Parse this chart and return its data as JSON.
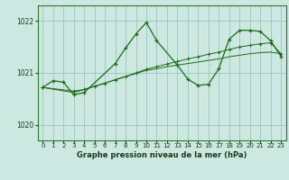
{
  "bg_color": "#cde8e0",
  "grid_color": "#8fbfb8",
  "line_color": "#1a6b1a",
  "xlabel": "Graphe pression niveau de la mer (hPa)",
  "xlim": [
    -0.5,
    23.5
  ],
  "ylim": [
    1019.7,
    1022.3
  ],
  "yticks": [
    1020,
    1021,
    1022
  ],
  "xticks": [
    0,
    1,
    2,
    3,
    4,
    5,
    6,
    7,
    8,
    9,
    10,
    11,
    12,
    13,
    14,
    15,
    16,
    17,
    18,
    19,
    20,
    21,
    22,
    23
  ],
  "line1_x": [
    0,
    1,
    2,
    3,
    4,
    7,
    8,
    9,
    10,
    11,
    13,
    14,
    15,
    16,
    17,
    18,
    19,
    20,
    21,
    22,
    23
  ],
  "line1_y": [
    1020.72,
    1020.85,
    1020.82,
    1020.58,
    1020.62,
    1021.18,
    1021.48,
    1021.75,
    1021.97,
    1021.62,
    1021.15,
    1020.88,
    1020.76,
    1020.78,
    1021.08,
    1021.65,
    1021.82,
    1021.82,
    1021.8,
    1021.62,
    1021.32
  ],
  "line2_x": [
    0,
    3,
    4,
    5,
    6,
    7,
    8,
    9,
    10,
    11,
    12,
    13,
    14,
    15,
    16,
    17,
    18,
    19,
    20,
    21,
    22,
    23
  ],
  "line2_y": [
    1020.72,
    1020.65,
    1020.68,
    1020.74,
    1020.8,
    1020.87,
    1020.93,
    1021.0,
    1021.07,
    1021.12,
    1021.17,
    1021.22,
    1021.27,
    1021.31,
    1021.36,
    1021.4,
    1021.45,
    1021.5,
    1021.53,
    1021.56,
    1021.58,
    1021.37
  ],
  "line3_x": [
    0,
    3,
    10,
    11,
    12,
    13,
    14,
    15,
    16,
    17,
    18,
    19,
    20,
    21,
    22,
    23
  ],
  "line3_y": [
    1020.72,
    1020.62,
    1021.05,
    1021.08,
    1021.12,
    1021.15,
    1021.18,
    1021.21,
    1021.24,
    1021.27,
    1021.31,
    1021.34,
    1021.37,
    1021.39,
    1021.4,
    1021.37
  ]
}
